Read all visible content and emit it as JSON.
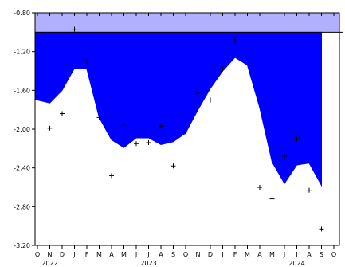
{
  "chart_data": {
    "type": "area",
    "title": "",
    "xlabel": "",
    "ylabel": "",
    "ylim": [
      -3.2,
      -0.8
    ],
    "y_ticks": [
      -0.8,
      -1.2,
      -1.6,
      -2.0,
      -2.4,
      -2.8,
      -3.2
    ],
    "y_tick_labels": [
      "-0.80",
      "-1.20",
      "-1.60",
      "-2.00",
      "-2.40",
      "-2.80",
      "-3.20"
    ],
    "month_labels": [
      "O",
      "N",
      "D",
      "J",
      "F",
      "M",
      "A",
      "M",
      "J",
      "J",
      "A",
      "S",
      "O",
      "N",
      "D",
      "J",
      "F",
      "M",
      "A",
      "M",
      "J",
      "J",
      "A",
      "S",
      "O"
    ],
    "year_labels": [
      {
        "label": "2022",
        "month_index": 1
      },
      {
        "label": "2023",
        "month_index": 9
      },
      {
        "label": "2024",
        "month_index": 21
      }
    ],
    "reference_band": {
      "from": -1.0,
      "to": -0.8,
      "color": "#b0b0ff"
    },
    "reference_level": -1.0,
    "fill_color": "#0000ff",
    "series": [
      {
        "kind": "area",
        "x": [
          0,
          1,
          2,
          3,
          4,
          5,
          6,
          7,
          8,
          9,
          10,
          11,
          12,
          13,
          14,
          15,
          16,
          17,
          18,
          19,
          20,
          21,
          22,
          23,
          24
        ],
        "values": [
          -1.7,
          -1.73,
          -1.6,
          -1.37,
          -1.38,
          -1.88,
          -2.11,
          -2.19,
          -2.09,
          -2.09,
          -2.16,
          -2.13,
          -2.04,
          -1.8,
          -1.58,
          -1.4,
          -1.26,
          -1.34,
          -1.78,
          -2.34,
          -2.56,
          -2.37,
          -2.35,
          -2.58,
          null
        ]
      },
      {
        "kind": "scatter",
        "marker": "+",
        "x": [
          1,
          2,
          3,
          4,
          5,
          6,
          7,
          8,
          9,
          10,
          11,
          12,
          13,
          14,
          15,
          16,
          18,
          19,
          20,
          21,
          22,
          23,
          24
        ],
        "values": [
          -1.99,
          -1.84,
          -0.97,
          -1.3,
          -1.88,
          -2.48,
          -1.96,
          -2.15,
          -2.14,
          -1.97,
          -2.38,
          -2.03,
          -1.63,
          -1.7,
          -1.38,
          -1.09,
          -2.6,
          -2.72,
          -2.28,
          -2.1,
          -2.63,
          -3.03,
          null
        ]
      }
    ]
  }
}
